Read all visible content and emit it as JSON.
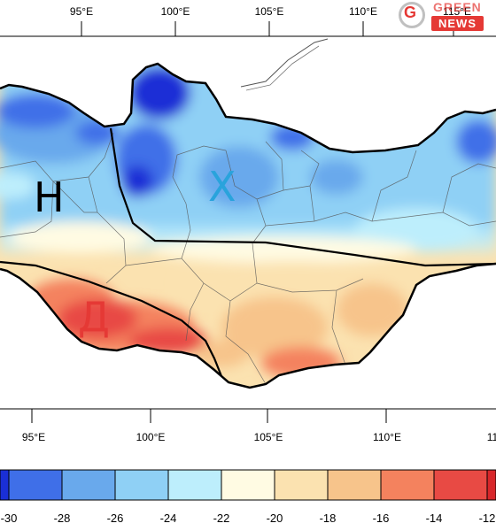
{
  "map": {
    "top_ticks": [
      "95°E",
      "100°E",
      "105°E",
      "110°E",
      "115°E"
    ],
    "bottom_ticks": [
      "95°E",
      "100°E",
      "105°E",
      "110°E",
      "11"
    ],
    "region_labels": {
      "west": "Н",
      "central": "Х",
      "south": "Д"
    },
    "region_colors": {
      "west": "#000000",
      "central": "#29a3dc",
      "south": "#e53935"
    }
  },
  "colorbar": {
    "labels": [
      "-30",
      "-28",
      "-26",
      "-24",
      "-22",
      "-20",
      "-18",
      "-16",
      "-14",
      "-12"
    ],
    "colors": [
      "#1a2fd6",
      "#3f6fe8",
      "#69a9ec",
      "#8fd0f5",
      "#bdeefc",
      "#fffbe3",
      "#fbe2b0",
      "#f7c48b",
      "#f4825e",
      "#e84a44",
      "#d8262a"
    ]
  },
  "logo": {
    "line1": "GREEN",
    "line2": "NEWS"
  }
}
